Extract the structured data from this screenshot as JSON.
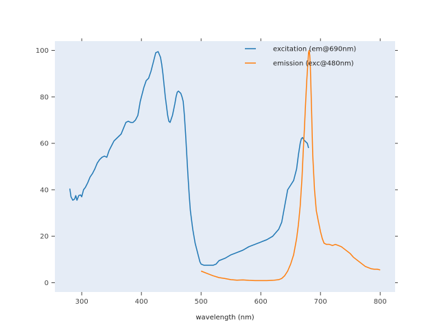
{
  "chart_data": {
    "type": "line",
    "title": "",
    "xlabel": "wavelength (nm)",
    "ylabel": "",
    "xlim": [
      255,
      825
    ],
    "ylim": [
      -4,
      104
    ],
    "xticks": [
      300,
      400,
      500,
      600,
      700,
      800
    ],
    "yticks": [
      0,
      20,
      40,
      60,
      80,
      100
    ],
    "grid": false,
    "legend_position": "top-right",
    "plot_background": "#e5ecf6",
    "series": [
      {
        "name": "excitation (em@690nm)",
        "color": "#1f77b4",
        "x": [
          280,
          282,
          285,
          288,
          290,
          292,
          295,
          298,
          300,
          303,
          306,
          310,
          314,
          318,
          322,
          326,
          330,
          334,
          338,
          342,
          346,
          350,
          354,
          358,
          362,
          366,
          370,
          374,
          378,
          382,
          386,
          390,
          394,
          398,
          400,
          404,
          408,
          412,
          416,
          420,
          424,
          428,
          432,
          434,
          436,
          438,
          440,
          442,
          444,
          446,
          448,
          450,
          452,
          454,
          456,
          458,
          460,
          462,
          464,
          466,
          468,
          470,
          472,
          474,
          476,
          478,
          480,
          482,
          484,
          486,
          488,
          490,
          492,
          494,
          496,
          498,
          500,
          505,
          510,
          515,
          520,
          525,
          530,
          540,
          550,
          560,
          570,
          580,
          590,
          600,
          610,
          620,
          630,
          635,
          640,
          645,
          650,
          655,
          660,
          663,
          666,
          668,
          670,
          672,
          674,
          676,
          678,
          680
        ],
        "y": [
          40.5,
          37,
          35.5,
          36,
          37.5,
          35.5,
          37.5,
          37.8,
          37,
          40,
          41,
          43,
          45.5,
          47,
          49,
          51.5,
          53,
          54,
          54.5,
          54,
          57,
          59,
          61,
          62,
          63,
          64,
          66.5,
          69,
          69.5,
          69,
          69,
          70,
          72,
          78,
          80,
          84,
          87,
          88,
          91,
          95,
          99,
          99.5,
          97,
          94,
          90,
          85,
          80,
          76,
          72,
          69.5,
          69,
          70.5,
          72,
          74.5,
          77,
          80,
          82,
          82.5,
          82,
          81.5,
          80,
          78,
          72,
          64,
          55,
          46,
          38,
          31,
          27,
          23,
          20,
          17,
          15,
          13,
          11,
          9,
          8,
          7.5,
          7.5,
          7.5,
          7.5,
          8,
          9.5,
          10.5,
          12,
          13,
          14,
          15.5,
          16.5,
          17.5,
          18.5,
          20,
          23,
          26,
          33,
          40,
          42,
          44,
          49,
          55,
          60,
          62,
          62.5,
          61.5,
          61,
          60.5,
          60,
          58
        ]
      },
      {
        "name": "emission (exc@480nm)",
        "color": "#ff7f0e",
        "x": [
          500,
          510,
          520,
          530,
          540,
          550,
          560,
          570,
          580,
          590,
          600,
          610,
          620,
          630,
          635,
          640,
          645,
          650,
          655,
          660,
          663,
          666,
          669,
          671,
          673,
          675,
          677,
          679,
          680,
          681,
          682,
          683,
          685,
          687,
          690,
          693,
          696,
          700,
          703,
          706,
          710,
          715,
          720,
          725,
          730,
          735,
          740,
          745,
          750,
          755,
          760,
          765,
          770,
          775,
          780,
          785,
          790,
          795,
          800
        ],
        "y": [
          5,
          4,
          3,
          2.2,
          1.8,
          1.3,
          1.1,
          1.2,
          1.0,
          0.9,
          0.9,
          0.9,
          1.0,
          1.3,
          1.8,
          3,
          5,
          8,
          12,
          19,
          25,
          33,
          45,
          56,
          66,
          77,
          87,
          95,
          99,
          100,
          98,
          93,
          75,
          55,
          40,
          31,
          27,
          22,
          19,
          17,
          16.5,
          16.5,
          16,
          16.5,
          16,
          15.5,
          14.5,
          13.5,
          12.5,
          11,
          10,
          9,
          8,
          7,
          6.5,
          6,
          5.8,
          5.8,
          5.5
        ]
      }
    ]
  }
}
